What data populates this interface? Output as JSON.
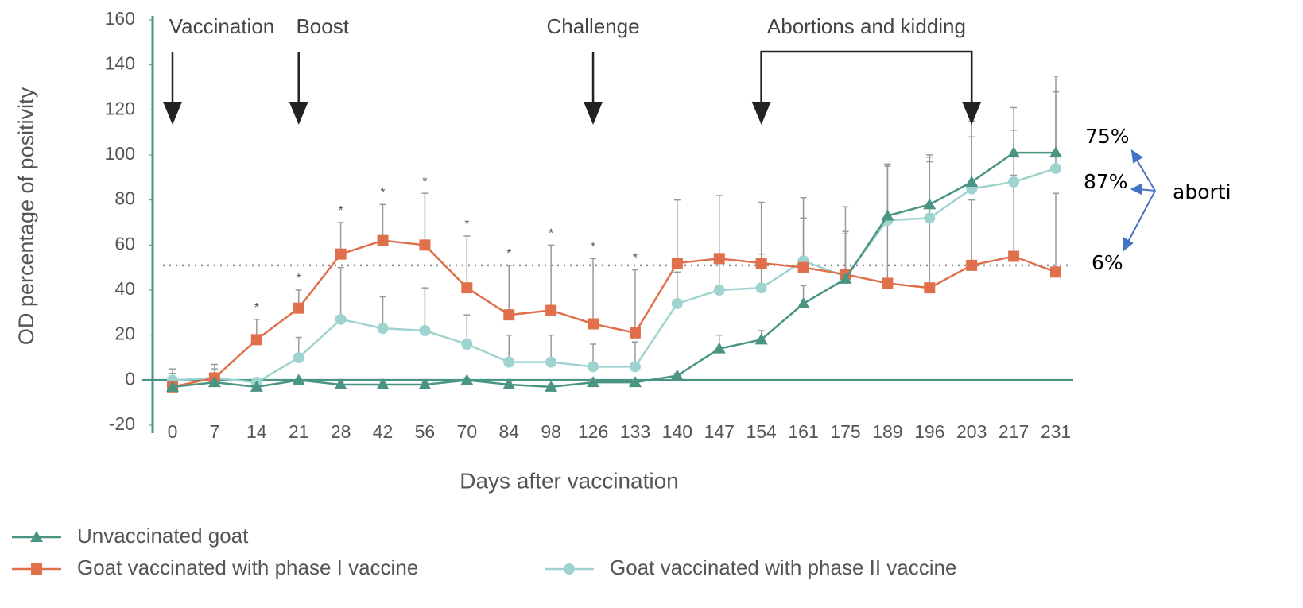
{
  "chart_data": {
    "type": "line",
    "y_axis_label": "OD percentage of positivity",
    "x_axis_label": "Days after vaccination",
    "categories": [
      "0",
      "7",
      "14",
      "21",
      "28",
      "42",
      "56",
      "70",
      "84",
      "98",
      "126",
      "133",
      "140",
      "147",
      "154",
      "161",
      "175",
      "189",
      "196",
      "203",
      "217",
      "231"
    ],
    "ylim": [
      -20,
      160
    ],
    "yticks": [
      -20,
      0,
      20,
      40,
      60,
      80,
      100,
      120,
      140,
      160
    ],
    "threshold": 51,
    "series": [
      {
        "name": "Unvaccinated goat",
        "color": "#4a9484",
        "marker": "triangle",
        "values": [
          -3,
          -1,
          -3,
          0,
          -2,
          -2,
          -2,
          0,
          -2,
          -3,
          -1,
          -1,
          2,
          14,
          18,
          34,
          45,
          73,
          78,
          88,
          101,
          101
        ],
        "errors": [
          1,
          1,
          1,
          1,
          1,
          1,
          1,
          1,
          1,
          1,
          1,
          1,
          1,
          6,
          4,
          8,
          21,
          23,
          22,
          27,
          20,
          34
        ]
      },
      {
        "name": "Goat vaccinated with phase I vaccine",
        "color": "#e0704c",
        "marker": "square",
        "values": [
          -3,
          1,
          18,
          32,
          56,
          62,
          60,
          41,
          29,
          31,
          25,
          21,
          52,
          54,
          52,
          50,
          47,
          43,
          41,
          51,
          55,
          48
        ],
        "errors": [
          8,
          6,
          9,
          8,
          14,
          16,
          23,
          23,
          22,
          29,
          29,
          28,
          28,
          28,
          27,
          31,
          30,
          53,
          58,
          29,
          36,
          35
        ]
      },
      {
        "name": "Goat vaccinated with phase II vaccine",
        "color": "#9fd3cf",
        "marker": "circle",
        "values": [
          0,
          1,
          -1,
          10,
          27,
          23,
          22,
          16,
          8,
          8,
          6,
          6,
          34,
          40,
          41,
          53,
          46,
          71,
          72,
          85,
          88,
          94
        ],
        "errors": [
          3,
          4,
          1,
          9,
          23,
          14,
          19,
          13,
          12,
          12,
          10,
          11,
          14,
          16,
          15,
          19,
          19,
          24,
          25,
          23,
          23,
          34
        ]
      }
    ],
    "significance_label": "*",
    "significant_days": [
      "14",
      "21",
      "28",
      "42",
      "56",
      "70",
      "84",
      "98",
      "126",
      "133"
    ],
    "events": [
      {
        "label": "Vaccination",
        "days": [
          "0"
        ]
      },
      {
        "label": "Boost",
        "days": [
          "21"
        ]
      },
      {
        "label": "Challenge",
        "days": [
          "126"
        ]
      },
      {
        "label": "Abortions and kidding",
        "days": [
          "154",
          "203"
        ]
      }
    ],
    "side_labels": [
      "75%",
      "87%",
      "6%"
    ],
    "side_note": "aborti"
  }
}
